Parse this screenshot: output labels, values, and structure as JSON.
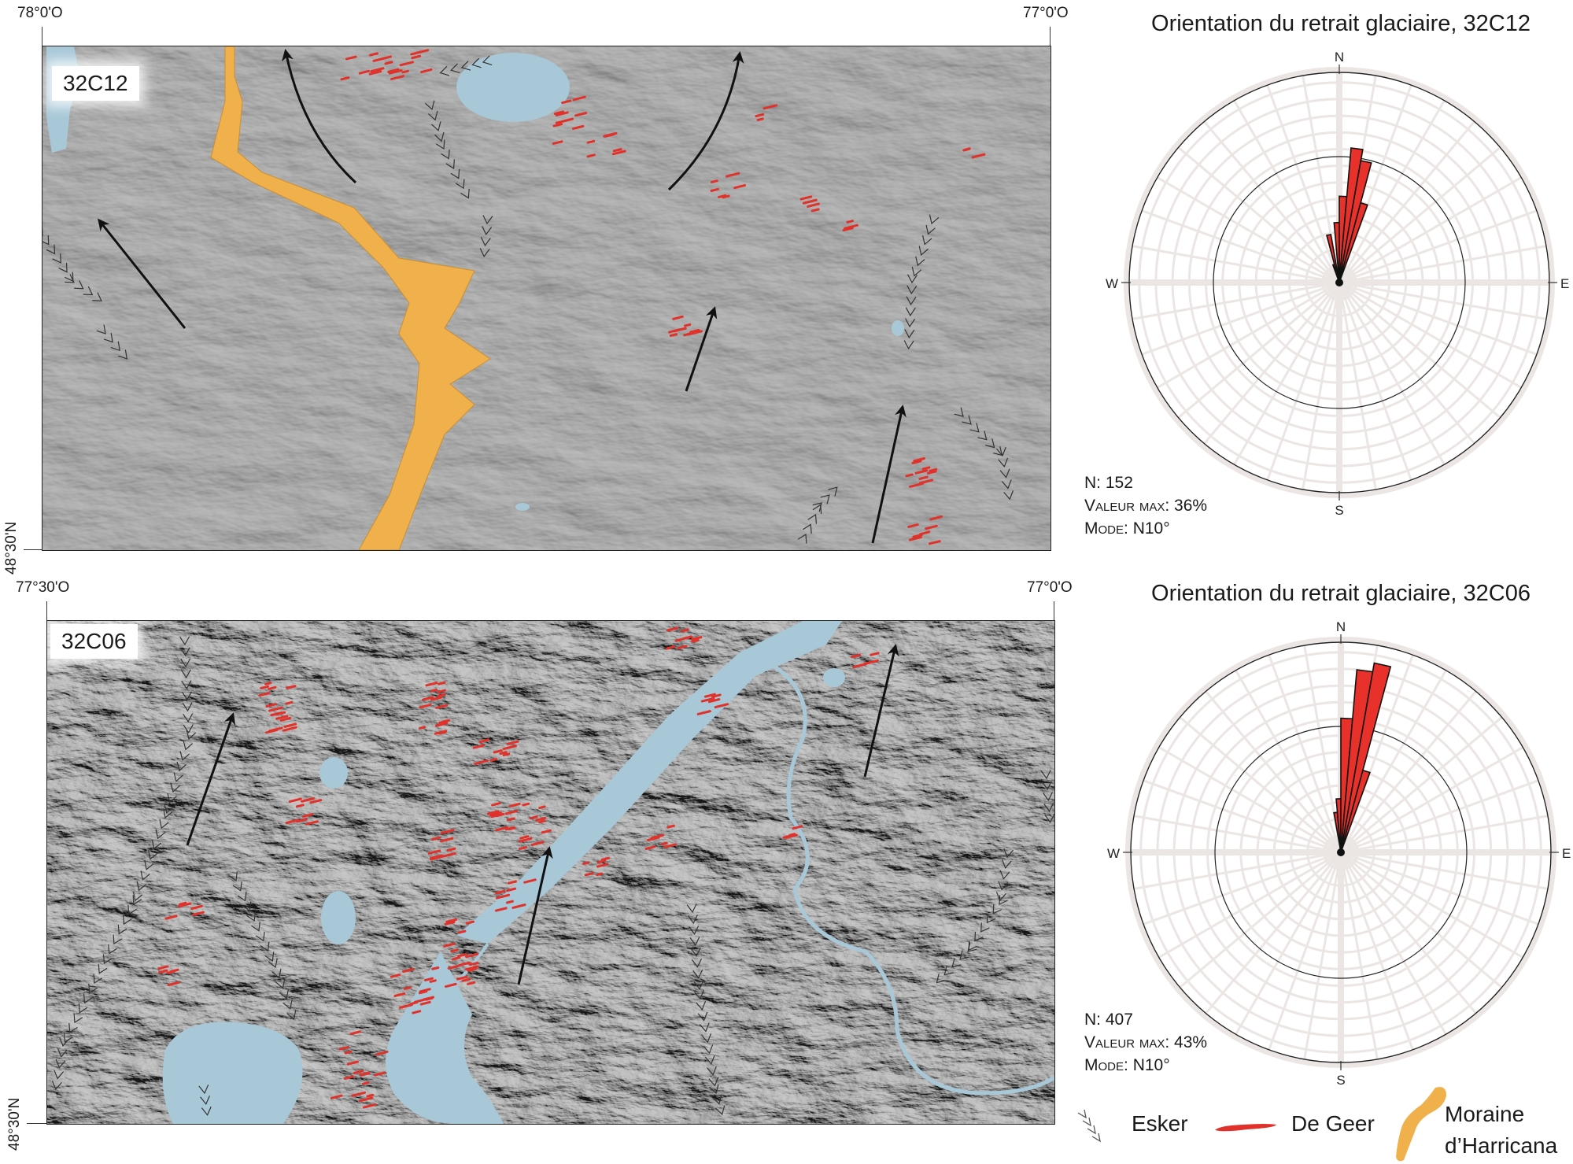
{
  "maps": [
    {
      "label": "32C12",
      "coord_left": "78°0'O",
      "coord_right": "77°0'O",
      "coord_lat": "48°30'N"
    },
    {
      "label": "32C06",
      "coord_left": "77°30'O",
      "coord_right": "77°0'O",
      "coord_lat": "48°30'N"
    }
  ],
  "roses": [
    {
      "title": "Orientation du retrait glaciaire, 32C12",
      "compass": {
        "n": "N",
        "e": "E",
        "s": "S",
        "w": "W"
      },
      "stats": {
        "n_label": "N:",
        "n_value": "152",
        "max_label": "Valeur max:",
        "max_value": "36%",
        "mode_label": "Mode:",
        "mode_value": "N10°"
      }
    },
    {
      "title": "Orientation du retrait glaciaire, 32C06",
      "compass": {
        "n": "N",
        "e": "E",
        "s": "S",
        "w": "W"
      },
      "stats": {
        "n_label": "N:",
        "n_value": "407",
        "max_label": "Valeur max:",
        "max_value": "43%",
        "mode_label": "Mode:",
        "mode_value": "N10°"
      }
    }
  ],
  "legend": {
    "esker": "Esker",
    "de_geer": "De Geer",
    "moraine_line1": "Moraine",
    "moraine_line2": "d’Harricana"
  },
  "colors": {
    "lake": "#a8c8d8",
    "moraine": "#f0b04c",
    "de_geer": "#e0322a",
    "rose_petal": "#e8312b",
    "grid": "#ebe6e3"
  },
  "chart_data": [
    {
      "type": "rose",
      "title": "Orientation du retrait glaciaire, 32C12",
      "units": "percent",
      "rmax": 56,
      "bins": [
        {
          "from": -20,
          "to": -15,
          "value": 5
        },
        {
          "from": -15,
          "to": -10,
          "value": 13
        },
        {
          "from": -5,
          "to": 0,
          "value": 16
        },
        {
          "from": 0,
          "to": 5,
          "value": 23
        },
        {
          "from": 5,
          "to": 10,
          "value": 36
        },
        {
          "from": 10,
          "to": 15,
          "value": 33
        },
        {
          "from": 15,
          "to": 20,
          "value": 22
        }
      ],
      "n": 152,
      "max_value": 36,
      "mode_deg": 10
    },
    {
      "type": "rose",
      "title": "Orientation du retrait glaciaire, 32C06",
      "units": "percent",
      "rmax": 47,
      "bins": [
        {
          "from": -10,
          "to": -5,
          "value": 9
        },
        {
          "from": -5,
          "to": 0,
          "value": 12
        },
        {
          "from": 0,
          "to": 5,
          "value": 30
        },
        {
          "from": 5,
          "to": 10,
          "value": 41
        },
        {
          "from": 10,
          "to": 15,
          "value": 43
        },
        {
          "from": 15,
          "to": 20,
          "value": 19
        }
      ],
      "n": 407,
      "max_value": 43,
      "mode_deg": 10
    }
  ]
}
